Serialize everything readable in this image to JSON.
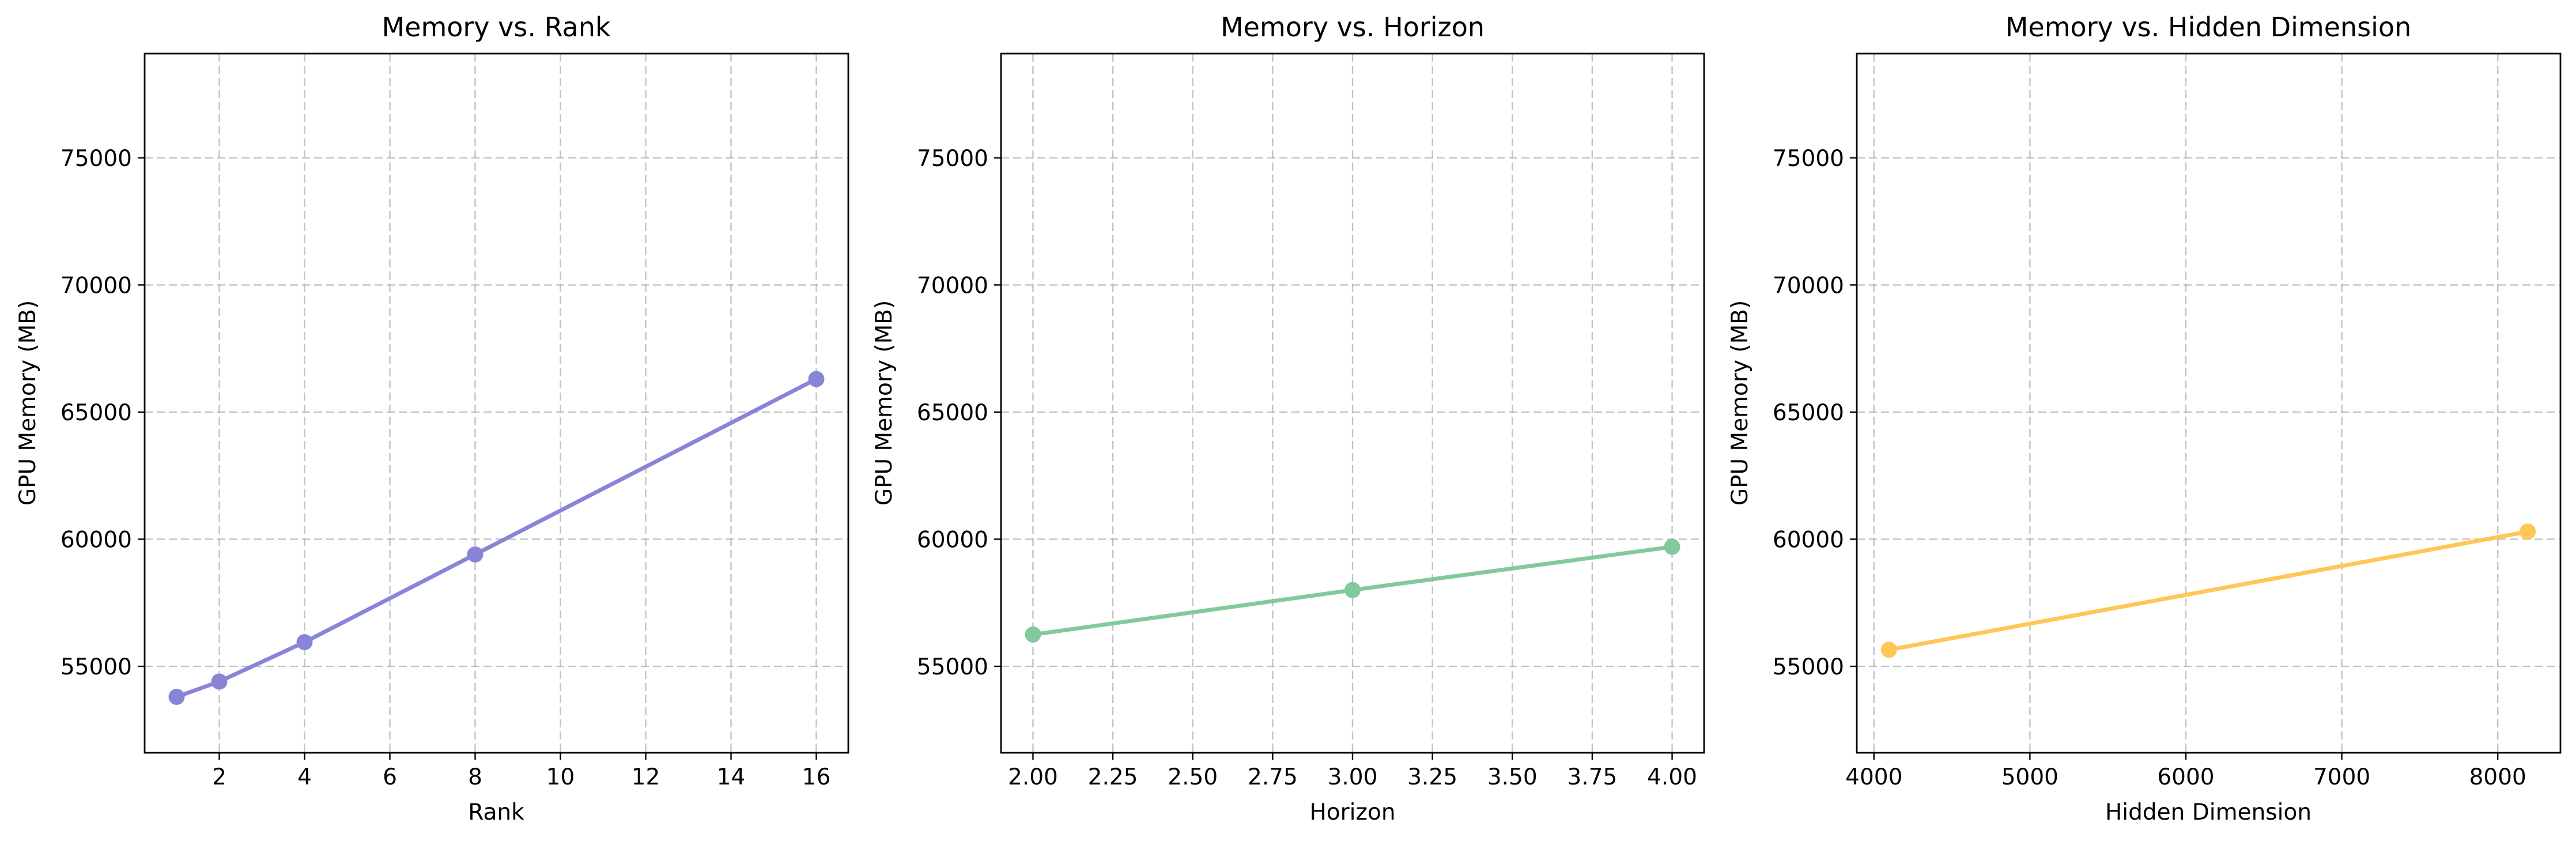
{
  "chart_data": [
    {
      "type": "line",
      "title": "Memory vs. Rank",
      "xlabel": "Rank",
      "ylabel": "GPU Memory (MB)",
      "xlim": [
        0.25,
        16.75
      ],
      "ylim": [
        51600,
        79100
      ],
      "xticks": [
        2,
        4,
        6,
        8,
        10,
        12,
        14,
        16
      ],
      "xtick_labels": [
        "2",
        "4",
        "6",
        "8",
        "10",
        "12",
        "14",
        "16"
      ],
      "yticks": [
        55000,
        60000,
        65000,
        70000,
        75000
      ],
      "ytick_labels": [
        "55000",
        "60000",
        "65000",
        "70000",
        "75000"
      ],
      "grid": true,
      "color": "#8884d8",
      "series": [
        {
          "x": [
            1,
            2,
            4,
            8,
            16
          ],
          "y": [
            53800,
            54400,
            55950,
            59400,
            66300
          ]
        }
      ]
    },
    {
      "type": "line",
      "title": "Memory vs. Horizon",
      "xlabel": "Horizon",
      "ylabel": "GPU Memory (MB)",
      "xlim": [
        1.9,
        4.1
      ],
      "ylim": [
        51600,
        79100
      ],
      "xticks": [
        2.0,
        2.25,
        2.5,
        2.75,
        3.0,
        3.25,
        3.5,
        3.75,
        4.0
      ],
      "xtick_labels": [
        "2.00",
        "2.25",
        "2.50",
        "2.75",
        "3.00",
        "3.25",
        "3.50",
        "3.75",
        "4.00"
      ],
      "yticks": [
        55000,
        60000,
        65000,
        70000,
        75000
      ],
      "ytick_labels": [
        "55000",
        "60000",
        "65000",
        "70000",
        "75000"
      ],
      "grid": true,
      "color": "#82ca9d",
      "series": [
        {
          "x": [
            2,
            3,
            4
          ],
          "y": [
            56250,
            58000,
            59700
          ]
        }
      ]
    },
    {
      "type": "line",
      "title": "Memory vs. Hidden Dimension",
      "xlabel": "Hidden Dimension",
      "ylabel": "GPU Memory (MB)",
      "xlim": [
        3890,
        8402
      ],
      "ylim": [
        51600,
        79100
      ],
      "xticks": [
        4000,
        5000,
        6000,
        7000,
        8000
      ],
      "xtick_labels": [
        "4000",
        "5000",
        "6000",
        "7000",
        "8000"
      ],
      "yticks": [
        55000,
        60000,
        65000,
        70000,
        75000
      ],
      "ytick_labels": [
        "55000",
        "60000",
        "65000",
        "70000",
        "75000"
      ],
      "grid": true,
      "color": "#ffc658",
      "series": [
        {
          "x": [
            4096,
            8192
          ],
          "y": [
            55650,
            60300
          ]
        }
      ]
    }
  ]
}
